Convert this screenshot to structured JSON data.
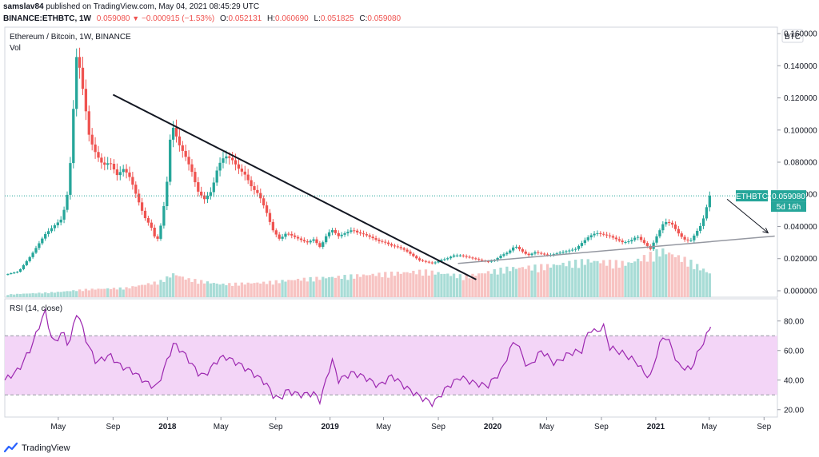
{
  "header": {
    "author": "samslav84",
    "published": "published on TradingView.com, May 04, 2021 08:45:29 UTC",
    "symbol": "BINANCE:ETHBTC, 1W",
    "price": "0.059080",
    "change": "−0.000915 (−1.53%)",
    "o_label": "O:",
    "o_value": "0.052131",
    "h_label": "H:",
    "h_value": "0.060690",
    "l_label": "L:",
    "l_value": "0.051825",
    "c_label": "C:",
    "c_value": "0.059080"
  },
  "pane_labels": {
    "main_title": "Ethereum / Bitcoin, 1W, BINANCE",
    "vol": "Vol",
    "rsi": "RSI (14, close)",
    "currency": "BTC"
  },
  "price_tag": {
    "ticker": "ETHBTC",
    "price": "0.059080",
    "countdown": "5d 16h"
  },
  "footer": {
    "brand": "TradingView"
  },
  "colors": {
    "up": "#26a69a",
    "down": "#ef5350",
    "rsi_line": "#9c27b0",
    "rsi_band": "#f3d5f7",
    "trendline": "#131722",
    "support_line": "#9598a1"
  },
  "chart_data": [
    {
      "type": "candlestick",
      "title": "Ethereum / Bitcoin, 1W, BINANCE",
      "ylim": [
        -0.004,
        0.164
      ],
      "y_ticks": [
        0.16,
        0.14,
        0.12,
        0.1,
        0.08,
        0.06,
        0.04,
        0.02,
        0.0
      ],
      "y_tick_labels": [
        "0.160000",
        "0.140000",
        "0.120000",
        "0.100000",
        "0.080000",
        "0.060000",
        "0.040000",
        "0.020000",
        "0.000000"
      ],
      "x_ticks": [
        "May",
        "Sep",
        "2018",
        "May",
        "Sep",
        "2019",
        "May",
        "Sep",
        "2020",
        "May",
        "Sep",
        "2021",
        "May",
        "Sep"
      ],
      "x_tick_dates": [
        "2017-05-01",
        "2017-09-01",
        "2018-01-01",
        "2018-05-01",
        "2018-09-01",
        "2019-01-01",
        "2019-05-01",
        "2019-09-01",
        "2020-01-01",
        "2020-05-01",
        "2020-09-01",
        "2021-01-01",
        "2021-05-01",
        "2021-09-01"
      ],
      "x_range": [
        "2017-01-01",
        "2021-10-01"
      ],
      "close_path": [
        [
          "2017-01-01",
          0.01
        ],
        [
          "2017-02-01",
          0.012
        ],
        [
          "2017-03-01",
          0.022
        ],
        [
          "2017-04-01",
          0.035
        ],
        [
          "2017-04-20",
          0.04
        ],
        [
          "2017-05-10",
          0.045
        ],
        [
          "2017-05-25",
          0.065
        ],
        [
          "2017-06-05",
          0.118
        ],
        [
          "2017-06-12",
          0.15
        ],
        [
          "2017-06-20",
          0.135
        ],
        [
          "2017-06-28",
          0.12
        ],
        [
          "2017-07-10",
          0.095
        ],
        [
          "2017-07-25",
          0.085
        ],
        [
          "2017-08-10",
          0.078
        ],
        [
          "2017-08-25",
          0.08
        ],
        [
          "2017-09-10",
          0.072
        ],
        [
          "2017-09-25",
          0.076
        ],
        [
          "2017-10-10",
          0.07
        ],
        [
          "2017-10-25",
          0.058
        ],
        [
          "2017-11-10",
          0.046
        ],
        [
          "2017-11-25",
          0.04
        ],
        [
          "2017-12-08",
          0.03
        ],
        [
          "2017-12-20",
          0.044
        ],
        [
          "2018-01-01",
          0.07
        ],
        [
          "2018-01-08",
          0.098
        ],
        [
          "2018-01-15",
          0.102
        ],
        [
          "2018-01-25",
          0.092
        ],
        [
          "2018-02-10",
          0.084
        ],
        [
          "2018-02-25",
          0.074
        ],
        [
          "2018-03-10",
          0.062
        ],
        [
          "2018-03-25",
          0.057
        ],
        [
          "2018-04-10",
          0.062
        ],
        [
          "2018-04-25",
          0.078
        ],
        [
          "2018-05-10",
          0.084
        ],
        [
          "2018-05-25",
          0.082
        ],
        [
          "2018-06-10",
          0.076
        ],
        [
          "2018-06-25",
          0.072
        ],
        [
          "2018-07-10",
          0.064
        ],
        [
          "2018-07-25",
          0.06
        ],
        [
          "2018-08-10",
          0.05
        ],
        [
          "2018-08-25",
          0.038
        ],
        [
          "2018-09-10",
          0.032
        ],
        [
          "2018-09-25",
          0.036
        ],
        [
          "2018-10-10",
          0.034
        ],
        [
          "2018-10-25",
          0.032
        ],
        [
          "2018-11-10",
          0.03
        ],
        [
          "2018-11-25",
          0.032
        ],
        [
          "2018-12-10",
          0.027
        ],
        [
          "2018-12-25",
          0.035
        ],
        [
          "2019-01-05",
          0.038
        ],
        [
          "2019-01-20",
          0.034
        ],
        [
          "2019-02-05",
          0.036
        ],
        [
          "2019-02-20",
          0.038
        ],
        [
          "2019-03-05",
          0.036
        ],
        [
          "2019-03-20",
          0.035
        ],
        [
          "2019-04-05",
          0.033
        ],
        [
          "2019-04-20",
          0.031
        ],
        [
          "2019-05-05",
          0.03
        ],
        [
          "2019-05-20",
          0.028
        ],
        [
          "2019-06-05",
          0.027
        ],
        [
          "2019-06-20",
          0.025
        ],
        [
          "2019-07-05",
          0.022
        ],
        [
          "2019-07-20",
          0.019
        ],
        [
          "2019-08-05",
          0.018
        ],
        [
          "2019-08-20",
          0.017
        ],
        [
          "2019-09-05",
          0.019
        ],
        [
          "2019-09-20",
          0.02
        ],
        [
          "2019-10-05",
          0.022
        ],
        [
          "2019-10-20",
          0.022
        ],
        [
          "2019-11-05",
          0.021
        ],
        [
          "2019-11-20",
          0.02
        ],
        [
          "2019-12-05",
          0.019
        ],
        [
          "2019-12-20",
          0.018
        ],
        [
          "2020-01-05",
          0.019
        ],
        [
          "2020-01-20",
          0.022
        ],
        [
          "2020-02-05",
          0.024
        ],
        [
          "2020-02-20",
          0.028
        ],
        [
          "2020-03-05",
          0.025
        ],
        [
          "2020-03-20",
          0.022
        ],
        [
          "2020-04-05",
          0.024
        ],
        [
          "2020-04-20",
          0.023
        ],
        [
          "2020-05-05",
          0.022
        ],
        [
          "2020-05-20",
          0.023
        ],
        [
          "2020-06-05",
          0.024
        ],
        [
          "2020-06-20",
          0.025
        ],
        [
          "2020-07-05",
          0.026
        ],
        [
          "2020-07-20",
          0.03
        ],
        [
          "2020-08-05",
          0.034
        ],
        [
          "2020-08-20",
          0.036
        ],
        [
          "2020-09-05",
          0.035
        ],
        [
          "2020-09-20",
          0.034
        ],
        [
          "2020-10-05",
          0.032
        ],
        [
          "2020-10-20",
          0.03
        ],
        [
          "2020-11-05",
          0.031
        ],
        [
          "2020-11-20",
          0.034
        ],
        [
          "2020-12-05",
          0.03
        ],
        [
          "2020-12-20",
          0.026
        ],
        [
          "2021-01-05",
          0.035
        ],
        [
          "2021-01-20",
          0.043
        ],
        [
          "2021-02-05",
          0.042
        ],
        [
          "2021-02-20",
          0.036
        ],
        [
          "2021-03-05",
          0.032
        ],
        [
          "2021-03-20",
          0.031
        ],
        [
          "2021-04-01",
          0.036
        ],
        [
          "2021-04-15",
          0.042
        ],
        [
          "2021-04-25",
          0.052
        ],
        [
          "2021-05-04",
          0.05908
        ]
      ],
      "trendline": [
        [
          "2017-09-01",
          0.122
        ],
        [
          "2019-11-25",
          0.007
        ]
      ],
      "support_line": [
        [
          "2019-10-15",
          0.017
        ],
        [
          "2021-09-25",
          0.034
        ]
      ],
      "arrow": [
        [
          "2021-06-10",
          0.057
        ],
        [
          "2021-09-10",
          0.036
        ]
      ],
      "last_price": 0.05908,
      "annotations": [
        "ETHBTC",
        "0.059080",
        "5d 16h"
      ]
    },
    {
      "type": "bar",
      "title": "Vol",
      "note": "relative weekly volume drawn at the bottom of the price pane",
      "volume_path": [
        [
          "2017-01-01",
          0.05
        ],
        [
          "2017-05-01",
          0.1
        ],
        [
          "2017-07-01",
          0.15
        ],
        [
          "2017-10-01",
          0.18
        ],
        [
          "2017-12-15",
          0.3
        ],
        [
          "2018-01-15",
          0.45
        ],
        [
          "2018-02-15",
          0.35
        ],
        [
          "2018-05-01",
          0.25
        ],
        [
          "2018-08-01",
          0.28
        ],
        [
          "2018-11-01",
          0.35
        ],
        [
          "2019-02-01",
          0.4
        ],
        [
          "2019-05-01",
          0.45
        ],
        [
          "2019-08-01",
          0.5
        ],
        [
          "2019-11-01",
          0.4
        ],
        [
          "2020-02-01",
          0.55
        ],
        [
          "2020-05-01",
          0.6
        ],
        [
          "2020-08-01",
          0.7
        ],
        [
          "2020-11-01",
          0.65
        ],
        [
          "2021-01-15",
          0.9
        ],
        [
          "2021-03-15",
          0.7
        ],
        [
          "2021-05-04",
          0.45
        ]
      ]
    },
    {
      "type": "line",
      "title": "RSI (14, close)",
      "ylim": [
        15,
        95
      ],
      "y_ticks": [
        80,
        60,
        40,
        20
      ],
      "y_tick_labels": [
        "80.00",
        "60.00",
        "40.00",
        "20.00"
      ],
      "band": [
        30,
        70
      ],
      "series": [
        {
          "points": [
            [
              "2017-01-01",
              40
            ],
            [
              "2017-02-01",
              47
            ],
            [
              "2017-03-01",
              62
            ],
            [
              "2017-04-01",
              87
            ],
            [
              "2017-04-20",
              64
            ],
            [
              "2017-05-10",
              73
            ],
            [
              "2017-05-25",
              63
            ],
            [
              "2017-06-12",
              87
            ],
            [
              "2017-07-05",
              65
            ],
            [
              "2017-07-25",
              52
            ],
            [
              "2017-08-25",
              57
            ],
            [
              "2017-09-15",
              50
            ],
            [
              "2017-10-15",
              46
            ],
            [
              "2017-11-15",
              38
            ],
            [
              "2017-12-08",
              35
            ],
            [
              "2017-12-25",
              48
            ],
            [
              "2018-01-15",
              65
            ],
            [
              "2018-02-10",
              57
            ],
            [
              "2018-03-10",
              45
            ],
            [
              "2018-03-25",
              43
            ],
            [
              "2018-04-25",
              54
            ],
            [
              "2018-05-10",
              56
            ],
            [
              "2018-06-10",
              51
            ],
            [
              "2018-07-10",
              45
            ],
            [
              "2018-08-10",
              38
            ],
            [
              "2018-08-25",
              30
            ],
            [
              "2018-09-10",
              27
            ],
            [
              "2018-09-25",
              33
            ],
            [
              "2018-10-25",
              30
            ],
            [
              "2018-11-25",
              31
            ],
            [
              "2018-12-10",
              26
            ],
            [
              "2019-01-05",
              54
            ],
            [
              "2019-01-20",
              40
            ],
            [
              "2019-02-20",
              45
            ],
            [
              "2019-03-20",
              42
            ],
            [
              "2019-04-20",
              36
            ],
            [
              "2019-05-20",
              43
            ],
            [
              "2019-06-20",
              35
            ],
            [
              "2019-07-20",
              29
            ],
            [
              "2019-08-20",
              24
            ],
            [
              "2019-09-20",
              35
            ],
            [
              "2019-10-20",
              42
            ],
            [
              "2019-11-20",
              38
            ],
            [
              "2019-12-20",
              36
            ],
            [
              "2020-01-20",
              46
            ],
            [
              "2020-02-20",
              68
            ],
            [
              "2020-03-20",
              48
            ],
            [
              "2020-04-20",
              60
            ],
            [
              "2020-05-20",
              51
            ],
            [
              "2020-06-20",
              58
            ],
            [
              "2020-07-20",
              60
            ],
            [
              "2020-08-05",
              75
            ],
            [
              "2020-08-20",
              72
            ],
            [
              "2020-09-05",
              77
            ],
            [
              "2020-09-20",
              62
            ],
            [
              "2020-10-20",
              58
            ],
            [
              "2020-11-20",
              52
            ],
            [
              "2020-12-05",
              45
            ],
            [
              "2020-12-20",
              42
            ],
            [
              "2021-01-05",
              60
            ],
            [
              "2021-01-20",
              71
            ],
            [
              "2021-02-05",
              63
            ],
            [
              "2021-02-20",
              50
            ],
            [
              "2021-03-20",
              47
            ],
            [
              "2021-04-05",
              58
            ],
            [
              "2021-04-25",
              70
            ],
            [
              "2021-05-04",
              76
            ]
          ]
        }
      ],
      "x_ticks": [
        "May",
        "Sep",
        "2018",
        "May",
        "Sep",
        "2019",
        "May",
        "Sep",
        "2020",
        "May",
        "Sep",
        "2021",
        "May",
        "Sep"
      ]
    }
  ]
}
